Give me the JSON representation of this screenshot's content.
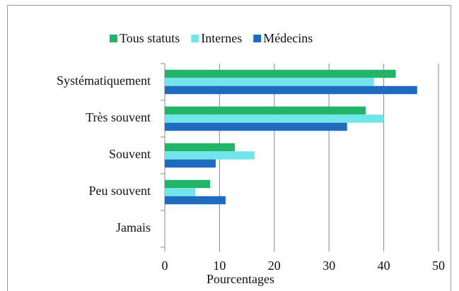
{
  "chart_data": {
    "type": "barh",
    "xlabel": "Pourcentages",
    "categories": [
      "Systématiquement",
      "Très souvent",
      "Souvent",
      "Peu souvent",
      "Jamais"
    ],
    "series": [
      {
        "name": "Tous statuts",
        "color": "#22b468",
        "values": [
          42.2,
          36.7,
          12.8,
          8.3,
          0
        ]
      },
      {
        "name": "Internes",
        "color": "#70e6ea",
        "values": [
          38.2,
          40.0,
          16.4,
          5.6,
          0
        ]
      },
      {
        "name": "Médecins",
        "color": "#1f6cbf",
        "values": [
          46.1,
          33.3,
          9.3,
          11.1,
          0
        ]
      }
    ],
    "xlim": [
      0,
      50
    ],
    "xticks": [
      0,
      10,
      20,
      30,
      40,
      50
    ],
    "grid": true,
    "legend": "top"
  }
}
